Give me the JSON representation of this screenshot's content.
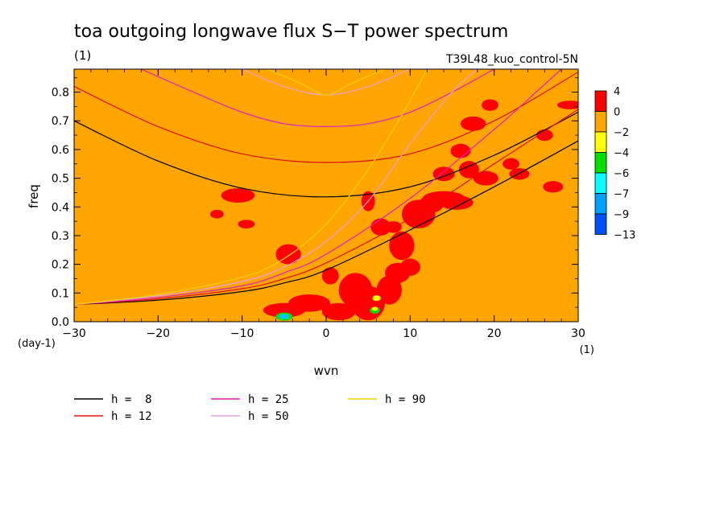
{
  "chart_data": {
    "type": "heatmap",
    "title": "toa outgoing longwave flux S−T power spectrum",
    "subtitle_units": "(1)",
    "dataset_label": "T39L48_kuo_control-5N",
    "xlabel": "wvn",
    "ylabel": "freq",
    "x_units": "(1)",
    "y_units": "(day-1)",
    "xlim": [
      -30,
      30
    ],
    "ylim": [
      0,
      0.88
    ],
    "x_ticks": [
      -30,
      -20,
      -10,
      0,
      10,
      20,
      30
    ],
    "x_tick_labels": [
      "−30",
      "−20",
      "−10",
      "0",
      "10",
      "20",
      "30"
    ],
    "y_ticks": [
      0.0,
      0.1,
      0.2,
      0.3,
      0.4,
      0.5,
      0.6,
      0.7,
      0.8
    ],
    "y_tick_labels": [
      "0.0",
      "0.1",
      "0.2",
      "0.3",
      "0.4",
      "0.5",
      "0.6",
      "0.7",
      "0.8"
    ],
    "background_level_color": "#ffa500",
    "colorbar": {
      "labels": [
        "4",
        "0",
        "−2",
        "−4",
        "−6",
        "−7",
        "−9",
        "−13"
      ],
      "colors": [
        "#ff0000",
        "#ffa500",
        "#ffff00",
        "#00e000",
        "#00ffff",
        "#00a0ff",
        "#0050ff"
      ]
    },
    "dispersion_curves": [
      {
        "name": "h =  8",
        "h": 8,
        "color": "#000000",
        "points": [
          [
            -30,
            0.7
          ],
          [
            -20,
            0.56
          ],
          [
            -10,
            0.465
          ],
          [
            0,
            0.435
          ],
          [
            10,
            0.47
          ],
          [
            20,
            0.58
          ],
          [
            30,
            0.73
          ]
        ]
      },
      {
        "name": "h =  8",
        "h": 8,
        "color": "#000000",
        "points": [
          [
            -30,
            0.06
          ],
          [
            -20,
            0.075
          ],
          [
            -10,
            0.105
          ],
          [
            -5,
            0.135
          ],
          [
            0,
            0.18
          ],
          [
            10,
            0.32
          ],
          [
            20,
            0.47
          ],
          [
            30,
            0.63
          ]
        ]
      },
      {
        "name": "h = 12",
        "h": 12,
        "color": "#e01010",
        "points": [
          [
            -30,
            0.82
          ],
          [
            -20,
            0.68
          ],
          [
            -10,
            0.585
          ],
          [
            0,
            0.555
          ],
          [
            10,
            0.585
          ],
          [
            20,
            0.7
          ],
          [
            30,
            0.87
          ]
        ]
      },
      {
        "name": "h = 12",
        "h": 12,
        "color": "#e01010",
        "points": [
          [
            -30,
            0.06
          ],
          [
            -20,
            0.08
          ],
          [
            -10,
            0.115
          ],
          [
            -5,
            0.15
          ],
          [
            0,
            0.205
          ],
          [
            10,
            0.36
          ],
          [
            20,
            0.55
          ],
          [
            30,
            0.74
          ]
        ]
      },
      {
        "name": "h = 25",
        "h": 25,
        "color": "#e020c0",
        "points": [
          [
            -22,
            0.88
          ],
          [
            -15,
            0.79
          ],
          [
            -10,
            0.73
          ],
          [
            -5,
            0.69
          ],
          [
            0,
            0.68
          ],
          [
            5,
            0.69
          ],
          [
            10,
            0.73
          ],
          [
            15,
            0.8
          ],
          [
            20,
            0.88
          ]
        ]
      },
      {
        "name": "h = 25",
        "h": 25,
        "color": "#e020c0",
        "points": [
          [
            -30,
            0.06
          ],
          [
            -20,
            0.085
          ],
          [
            -10,
            0.125
          ],
          [
            -5,
            0.17
          ],
          [
            0,
            0.235
          ],
          [
            10,
            0.43
          ],
          [
            20,
            0.67
          ],
          [
            25,
            0.8
          ],
          [
            28,
            0.88
          ]
        ]
      },
      {
        "name": "h = 50",
        "h": 50,
        "color": "#e8a0d8",
        "points": [
          [
            -10,
            0.88
          ],
          [
            -5,
            0.82
          ],
          [
            0,
            0.79
          ],
          [
            5,
            0.82
          ],
          [
            10,
            0.88
          ]
        ]
      },
      {
        "name": "h = 50",
        "h": 50,
        "color": "#e8a0d8",
        "points": [
          [
            -30,
            0.06
          ],
          [
            -20,
            0.09
          ],
          [
            -10,
            0.14
          ],
          [
            -5,
            0.19
          ],
          [
            0,
            0.28
          ],
          [
            5,
            0.42
          ],
          [
            10,
            0.62
          ],
          [
            15,
            0.8
          ],
          [
            18,
            0.88
          ]
        ]
      },
      {
        "name": "h = 90",
        "h": 90,
        "color": "#f0d000",
        "points": [
          [
            -7,
            0.88
          ],
          [
            -3,
            0.83
          ],
          [
            0,
            0.79
          ],
          [
            3,
            0.83
          ],
          [
            7,
            0.88
          ]
        ]
      },
      {
        "name": "h = 90",
        "h": 90,
        "color": "#f0d000",
        "points": [
          [
            -30,
            0.06
          ],
          [
            -20,
            0.095
          ],
          [
            -10,
            0.155
          ],
          [
            -5,
            0.22
          ],
          [
            0,
            0.34
          ],
          [
            5,
            0.53
          ],
          [
            9,
            0.72
          ],
          [
            12,
            0.88
          ]
        ]
      }
    ],
    "legend": {
      "placement": "bottom",
      "entries": [
        {
          "label": "h =  8",
          "color": "#000000"
        },
        {
          "label": "h = 12",
          "color": "#e01010"
        },
        {
          "label": "h = 25",
          "color": "#e020c0"
        },
        {
          "label": "h = 50",
          "color": "#e8a0d8"
        },
        {
          "label": "h = 90",
          "color": "#f0d000"
        }
      ]
    },
    "red_patches": [
      [
        -5,
        0.04,
        2.5,
        0.025
      ],
      [
        -2,
        0.065,
        2.5,
        0.03
      ],
      [
        -4.5,
        0.235,
        1.5,
        0.035
      ],
      [
        -10.5,
        0.44,
        2,
        0.025
      ],
      [
        5,
        0.065,
        2,
        0.06
      ],
      [
        3.5,
        0.11,
        2,
        0.06
      ],
      [
        1.5,
        0.035,
        2,
        0.03
      ],
      [
        7.5,
        0.11,
        1.5,
        0.05
      ],
      [
        8.5,
        0.17,
        1.5,
        0.035
      ],
      [
        10,
        0.19,
        1.2,
        0.03
      ],
      [
        9,
        0.265,
        1.5,
        0.05
      ],
      [
        11,
        0.375,
        2,
        0.05
      ],
      [
        12.5,
        0.41,
        1.5,
        0.03
      ],
      [
        14,
        0.43,
        2.5,
        0.025
      ],
      [
        15.5,
        0.415,
        2,
        0.025
      ],
      [
        17,
        0.53,
        1.2,
        0.03
      ],
      [
        19,
        0.5,
        1.5,
        0.025
      ],
      [
        14,
        0.515,
        1.3,
        0.025
      ],
      [
        16,
        0.595,
        1.2,
        0.025
      ],
      [
        17.5,
        0.69,
        1.5,
        0.025
      ],
      [
        19.5,
        0.755,
        1,
        0.02
      ],
      [
        23,
        0.515,
        1.2,
        0.02
      ],
      [
        22,
        0.55,
        1,
        0.02
      ],
      [
        26,
        0.65,
        1,
        0.02
      ],
      [
        27,
        0.47,
        1.2,
        0.02
      ],
      [
        29,
        0.755,
        1.5,
        0.015
      ],
      [
        5,
        0.42,
        0.8,
        0.035
      ],
      [
        6.5,
        0.33,
        1.2,
        0.03
      ],
      [
        8,
        0.33,
        1,
        0.02
      ],
      [
        -9.5,
        0.34,
        1,
        0.015
      ],
      [
        -13,
        0.375,
        0.8,
        0.015
      ],
      [
        0.5,
        0.16,
        1,
        0.03
      ]
    ],
    "green_patches": [
      [
        -5,
        0.018,
        1.0,
        0.014
      ],
      [
        5.8,
        0.04,
        0.6,
        0.012
      ]
    ],
    "cyan_patches": [
      [
        -5,
        0.018,
        0.6,
        0.009
      ]
    ],
    "yellow_patches": [
      [
        6,
        0.082,
        0.5,
        0.01
      ],
      [
        5.8,
        0.045,
        0.35,
        0.007
      ]
    ]
  }
}
